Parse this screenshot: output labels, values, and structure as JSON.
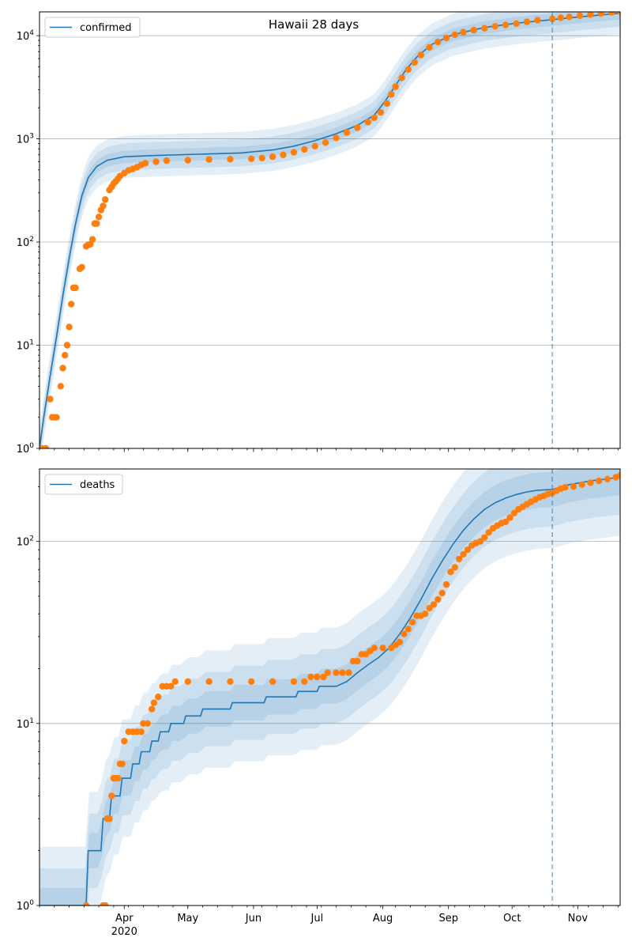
{
  "title": "Hawaii 28 days",
  "colors": {
    "model": "#1f77b4",
    "observed": "#ff7f0e",
    "band": "#1f77b4",
    "grid": "#b0b0b0",
    "divider": "#1f77b4"
  },
  "x_axis": {
    "start_day": 0,
    "end_day": 274,
    "labels": [
      {
        "day": 40,
        "text": "Apr"
      },
      {
        "day": 70,
        "text": "May"
      },
      {
        "day": 101,
        "text": "Jun"
      },
      {
        "day": 131,
        "text": "Jul"
      },
      {
        "day": 162,
        "text": "Aug"
      },
      {
        "day": 193,
        "text": "Sep"
      },
      {
        "day": 223,
        "text": "Oct"
      },
      {
        "day": 254,
        "text": "Nov"
      }
    ],
    "year_label": {
      "day": 40,
      "text": "2020"
    },
    "forecast_start_day": 242
  },
  "chart_data": [
    {
      "type": "line",
      "name": "confirmed-panel",
      "legend": "confirmed",
      "title": "Hawaii 28 days",
      "yscale": "log",
      "ylim": [
        1,
        17000
      ],
      "yticks": [
        {
          "value": 1,
          "base": "10",
          "exp": "0"
        },
        {
          "value": 10,
          "base": "10",
          "exp": "1"
        },
        {
          "value": 100,
          "base": "10",
          "exp": "2"
        },
        {
          "value": 1000,
          "base": "10",
          "exp": "3"
        },
        {
          "value": 10000,
          "base": "10",
          "exp": "4"
        }
      ],
      "model": [
        [
          0,
          1
        ],
        [
          2,
          2
        ],
        [
          5,
          5
        ],
        [
          8,
          12
        ],
        [
          11,
          30
        ],
        [
          14,
          70
        ],
        [
          17,
          150
        ],
        [
          20,
          280
        ],
        [
          23,
          420
        ],
        [
          27,
          540
        ],
        [
          32,
          620
        ],
        [
          40,
          670
        ],
        [
          55,
          690
        ],
        [
          75,
          710
        ],
        [
          95,
          730
        ],
        [
          110,
          780
        ],
        [
          120,
          850
        ],
        [
          130,
          960
        ],
        [
          140,
          1120
        ],
        [
          150,
          1350
        ],
        [
          158,
          1700
        ],
        [
          163,
          2300
        ],
        [
          168,
          3300
        ],
        [
          173,
          4700
        ],
        [
          178,
          6200
        ],
        [
          185,
          8200
        ],
        [
          195,
          10200
        ],
        [
          210,
          12000
        ],
        [
          225,
          13200
        ],
        [
          242,
          14300
        ],
        [
          255,
          15200
        ],
        [
          274,
          16500
        ]
      ],
      "band_factors": [
        1.15,
        1.35,
        1.6
      ],
      "observed": [
        [
          0,
          1
        ],
        [
          1,
          1
        ],
        [
          3,
          1
        ],
        [
          5,
          3
        ],
        [
          6,
          2
        ],
        [
          7,
          2
        ],
        [
          8,
          2
        ],
        [
          10,
          4
        ],
        [
          11,
          6
        ],
        [
          12,
          8
        ],
        [
          13,
          10
        ],
        [
          14,
          15
        ],
        [
          15,
          25
        ],
        [
          16,
          36
        ],
        [
          17,
          36
        ],
        [
          19,
          55
        ],
        [
          20,
          57
        ],
        [
          22,
          91
        ],
        [
          23,
          94
        ],
        [
          24,
          95
        ],
        [
          25,
          106
        ],
        [
          26,
          151
        ],
        [
          27,
          151
        ],
        [
          28,
          175
        ],
        [
          29,
          204
        ],
        [
          30,
          224
        ],
        [
          31,
          258
        ],
        [
          33,
          319
        ],
        [
          34,
          342
        ],
        [
          35,
          369
        ],
        [
          36,
          387
        ],
        [
          37,
          410
        ],
        [
          38,
          435
        ],
        [
          40,
          465
        ],
        [
          42,
          496
        ],
        [
          44,
          511
        ],
        [
          46,
          530
        ],
        [
          48,
          560
        ],
        [
          50,
          580
        ],
        [
          55,
          600
        ],
        [
          60,
          615
        ],
        [
          70,
          620
        ],
        [
          80,
          630
        ],
        [
          90,
          635
        ],
        [
          100,
          640
        ],
        [
          105,
          650
        ],
        [
          110,
          670
        ],
        [
          115,
          700
        ],
        [
          120,
          740
        ],
        [
          125,
          790
        ],
        [
          130,
          850
        ],
        [
          135,
          920
        ],
        [
          140,
          1020
        ],
        [
          145,
          1150
        ],
        [
          150,
          1280
        ],
        [
          155,
          1450
        ],
        [
          158,
          1600
        ],
        [
          161,
          1800
        ],
        [
          164,
          2200
        ],
        [
          166,
          2700
        ],
        [
          168,
          3200
        ],
        [
          171,
          3900
        ],
        [
          174,
          4700
        ],
        [
          177,
          5500
        ],
        [
          180,
          6500
        ],
        [
          184,
          7700
        ],
        [
          188,
          8700
        ],
        [
          192,
          9500
        ],
        [
          196,
          10200
        ],
        [
          200,
          10800
        ],
        [
          205,
          11300
        ],
        [
          210,
          11800
        ],
        [
          215,
          12300
        ],
        [
          220,
          12700
        ],
        [
          225,
          13100
        ],
        [
          230,
          13600
        ],
        [
          235,
          14100
        ],
        [
          242,
          14500
        ],
        [
          246,
          14900
        ],
        [
          250,
          15200
        ],
        [
          255,
          15600
        ],
        [
          260,
          16000
        ],
        [
          265,
          16400
        ],
        [
          270,
          16800
        ],
        [
          274,
          17100
        ]
      ]
    },
    {
      "type": "line",
      "name": "deaths-panel",
      "legend": "deaths",
      "yscale": "log",
      "ylim": [
        1,
        250
      ],
      "yticks": [
        {
          "value": 1,
          "base": "10",
          "exp": "0"
        },
        {
          "value": 10,
          "base": "10",
          "exp": "1"
        },
        {
          "value": 100,
          "base": "10",
          "exp": "2"
        }
      ],
      "model": [
        [
          0,
          1
        ],
        [
          22,
          1
        ],
        [
          23,
          2
        ],
        [
          29,
          2
        ],
        [
          30,
          3
        ],
        [
          33,
          3
        ],
        [
          34,
          4
        ],
        [
          38,
          4
        ],
        [
          39,
          5
        ],
        [
          43,
          5
        ],
        [
          44,
          6
        ],
        [
          47,
          6
        ],
        [
          48,
          7
        ],
        [
          52,
          7
        ],
        [
          53,
          8
        ],
        [
          56,
          8
        ],
        [
          57,
          9
        ],
        [
          61,
          9
        ],
        [
          62,
          10
        ],
        [
          68,
          10
        ],
        [
          69,
          11
        ],
        [
          76,
          11
        ],
        [
          77,
          12
        ],
        [
          90,
          12
        ],
        [
          91,
          13
        ],
        [
          106,
          13
        ],
        [
          107,
          14
        ],
        [
          121,
          14
        ],
        [
          122,
          15
        ],
        [
          131,
          15
        ],
        [
          132,
          16
        ],
        [
          140,
          16
        ],
        [
          145,
          17
        ],
        [
          150,
          19
        ],
        [
          155,
          21
        ],
        [
          160,
          23
        ],
        [
          165,
          26
        ],
        [
          170,
          31
        ],
        [
          175,
          38
        ],
        [
          180,
          48
        ],
        [
          185,
          62
        ],
        [
          190,
          78
        ],
        [
          195,
          96
        ],
        [
          200,
          115
        ],
        [
          205,
          133
        ],
        [
          210,
          150
        ],
        [
          215,
          163
        ],
        [
          220,
          173
        ],
        [
          225,
          181
        ],
        [
          230,
          187
        ],
        [
          235,
          191
        ],
        [
          242,
          193
        ],
        [
          250,
          205
        ],
        [
          260,
          215
        ],
        [
          274,
          225
        ]
      ],
      "band_factors": [
        1.25,
        1.6,
        2.1
      ],
      "observed": [
        [
          22,
          1
        ],
        [
          30,
          1
        ],
        [
          31,
          1
        ],
        [
          32,
          3
        ],
        [
          33,
          3
        ],
        [
          34,
          4
        ],
        [
          35,
          5
        ],
        [
          36,
          5
        ],
        [
          37,
          5
        ],
        [
          38,
          6
        ],
        [
          39,
          6
        ],
        [
          40,
          8
        ],
        [
          42,
          9
        ],
        [
          44,
          9
        ],
        [
          46,
          9
        ],
        [
          48,
          9
        ],
        [
          49,
          10
        ],
        [
          51,
          10
        ],
        [
          53,
          12
        ],
        [
          54,
          13
        ],
        [
          56,
          14
        ],
        [
          58,
          16
        ],
        [
          60,
          16
        ],
        [
          62,
          16
        ],
        [
          64,
          17
        ],
        [
          70,
          17
        ],
        [
          80,
          17
        ],
        [
          90,
          17
        ],
        [
          100,
          17
        ],
        [
          110,
          17
        ],
        [
          120,
          17
        ],
        [
          125,
          17
        ],
        [
          128,
          18
        ],
        [
          131,
          18
        ],
        [
          134,
          18
        ],
        [
          136,
          19
        ],
        [
          140,
          19
        ],
        [
          143,
          19
        ],
        [
          146,
          19
        ],
        [
          148,
          22
        ],
        [
          150,
          22
        ],
        [
          152,
          24
        ],
        [
          154,
          24
        ],
        [
          156,
          25
        ],
        [
          158,
          26
        ],
        [
          162,
          26
        ],
        [
          166,
          26
        ],
        [
          168,
          27
        ],
        [
          170,
          28
        ],
        [
          172,
          31
        ],
        [
          174,
          33
        ],
        [
          176,
          36
        ],
        [
          178,
          39
        ],
        [
          180,
          39
        ],
        [
          182,
          40
        ],
        [
          184,
          43
        ],
        [
          186,
          45
        ],
        [
          188,
          48
        ],
        [
          190,
          52
        ],
        [
          192,
          58
        ],
        [
          194,
          68
        ],
        [
          196,
          72
        ],
        [
          198,
          80
        ],
        [
          200,
          85
        ],
        [
          202,
          90
        ],
        [
          204,
          95
        ],
        [
          206,
          98
        ],
        [
          208,
          100
        ],
        [
          210,
          105
        ],
        [
          212,
          112
        ],
        [
          214,
          118
        ],
        [
          216,
          122
        ],
        [
          218,
          126
        ],
        [
          220,
          128
        ],
        [
          222,
          135
        ],
        [
          224,
          143
        ],
        [
          226,
          150
        ],
        [
          228,
          155
        ],
        [
          230,
          160
        ],
        [
          232,
          165
        ],
        [
          234,
          170
        ],
        [
          236,
          175
        ],
        [
          238,
          178
        ],
        [
          240,
          182
        ],
        [
          242,
          185
        ],
        [
          244,
          190
        ],
        [
          246,
          195
        ],
        [
          248,
          198
        ],
        [
          252,
          200
        ],
        [
          256,
          205
        ],
        [
          260,
          210
        ],
        [
          264,
          215
        ],
        [
          268,
          220
        ],
        [
          272,
          225
        ],
        [
          274,
          230
        ]
      ]
    }
  ]
}
